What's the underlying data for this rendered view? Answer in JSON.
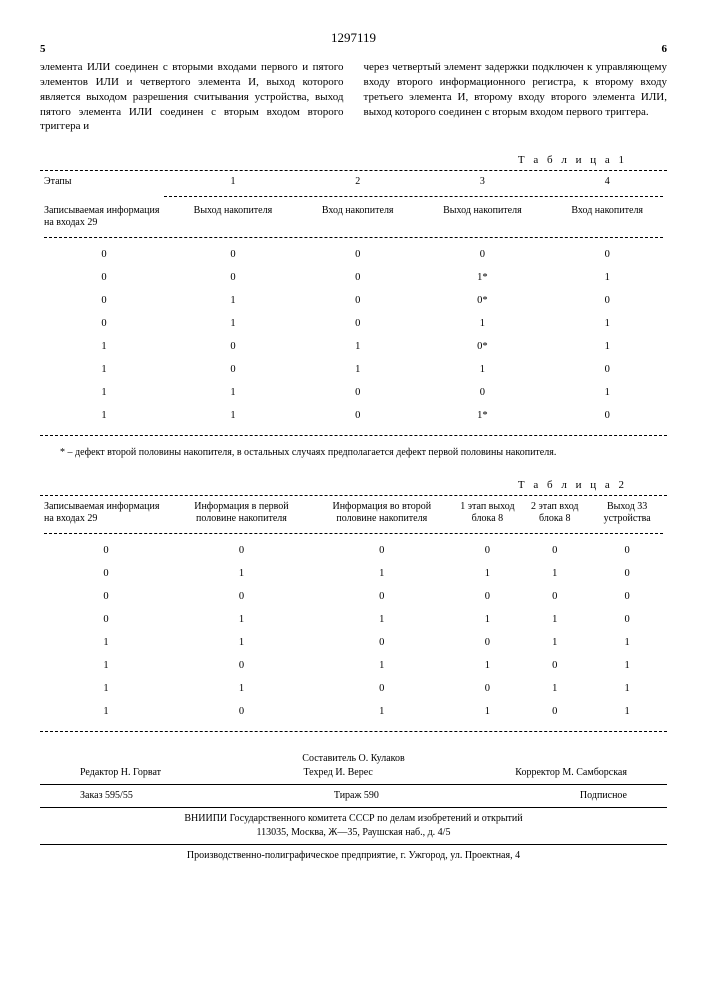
{
  "patent_no": "1297119",
  "col_left_num": "5",
  "col_right_num": "6",
  "col_left_text": "элемента ИЛИ соединен с вторыми входами первого и пятого элементов ИЛИ и четвертого элемента И, выход которого является выходом разрешения считывания устройства, выход пятого элемента ИЛИ соединен с вторым входом второго триггера и",
  "col_right_text": "через четвертый элемент задержки подключен к управляющему входу второго информационного регистра, к второму входу третьего элемента И, второму входу второго элемента ИЛИ, выход которого соединен с вторым входом первого триггера.",
  "table1": {
    "title": "Т а б л и ц а  1",
    "header_top": [
      "Этапы",
      "1",
      "2",
      "3",
      "4"
    ],
    "header_bottom": [
      "Записываемая информация на входах 29",
      "Выход накопителя",
      "Вход накопителя",
      "Выход накопителя",
      "Вход накопителя"
    ],
    "rows": [
      [
        "0",
        "0",
        "0",
        "0",
        "0"
      ],
      [
        "0",
        "0",
        "0",
        "1*",
        "1"
      ],
      [
        "0",
        "1",
        "0",
        "0*",
        "0"
      ],
      [
        "0",
        "1",
        "0",
        "1",
        "1"
      ],
      [
        "1",
        "0",
        "1",
        "0*",
        "1"
      ],
      [
        "1",
        "0",
        "1",
        "1",
        "0"
      ],
      [
        "1",
        "1",
        "0",
        "0",
        "1"
      ],
      [
        "1",
        "1",
        "0",
        "1*",
        "0"
      ]
    ]
  },
  "footnote": "* – дефект второй половины накопителя, в остальных случаях предполагается дефект первой половины накопителя.",
  "table2": {
    "title": "Т а б л и ц а  2",
    "columns": [
      "Записываемая информация на входах 29",
      "Информация в первой половине накопителя",
      "Информация во второй половине накопителя",
      "1 этап выход блока 8",
      "2 этап вход блока 8",
      "Выход 33 устройства"
    ],
    "rows": [
      [
        "0",
        "0",
        "0",
        "0",
        "0",
        "0"
      ],
      [
        "0",
        "1",
        "1",
        "1",
        "1",
        "0"
      ],
      [
        "0",
        "0",
        "0",
        "0",
        "0",
        "0"
      ],
      [
        "0",
        "1",
        "1",
        "1",
        "1",
        "0"
      ],
      [
        "1",
        "1",
        "0",
        "0",
        "1",
        "1"
      ],
      [
        "1",
        "0",
        "1",
        "1",
        "0",
        "1"
      ],
      [
        "1",
        "1",
        "0",
        "0",
        "1",
        "1"
      ],
      [
        "1",
        "0",
        "1",
        "1",
        "0",
        "1"
      ]
    ]
  },
  "footer": {
    "compiler": "Составитель О. Кулаков",
    "editor": "Редактор Н. Горват",
    "tech": "Техред И. Верес",
    "corr": "Корректор М. Самборская",
    "order": "Заказ 595/55",
    "tirage": "Тираж 590",
    "subscr": "Подписное",
    "line1": "ВНИИПИ Государственного комитета СССР по делам изобретений и открытий",
    "line2": "113035, Москва, Ж—35, Раушская наб., д. 4/5",
    "line3": "Производственно-полиграфическое предприятие, г. Ужгород, ул. Проектная, 4"
  }
}
